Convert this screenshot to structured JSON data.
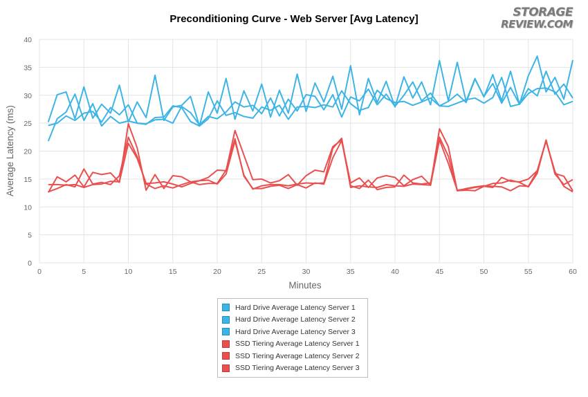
{
  "logo": {
    "line1": "STORAGE",
    "line2": "REVIEW.COM"
  },
  "chart_data": {
    "type": "line",
    "title": "Preconditioning Curve - Web Server [Avg Latency]",
    "xlabel": "Minutes",
    "ylabel": "Average Latency (ms)",
    "xlim": [
      0,
      60
    ],
    "ylim": [
      0,
      40
    ],
    "xticks": [
      0,
      5,
      10,
      15,
      20,
      25,
      30,
      35,
      40,
      45,
      50,
      55,
      60
    ],
    "yticks": [
      0,
      5,
      10,
      15,
      20,
      25,
      30,
      35,
      40
    ],
    "grid": true,
    "legend_position": "bottom",
    "x": [
      1,
      2,
      3,
      4,
      5,
      6,
      7,
      8,
      9,
      10,
      11,
      12,
      13,
      14,
      15,
      16,
      17,
      18,
      19,
      20,
      21,
      22,
      23,
      24,
      25,
      26,
      27,
      28,
      29,
      30,
      31,
      32,
      33,
      34,
      35,
      36,
      37,
      38,
      39,
      40,
      41,
      42,
      43,
      44,
      45,
      46,
      47,
      48,
      49,
      50,
      51,
      52,
      53,
      54,
      55,
      56,
      57,
      58,
      59,
      60
    ],
    "series": [
      {
        "name": "Hard Drive Average Latency Server 1",
        "color": "#3db4e6",
        "values": [
          25.2,
          30.1,
          30.6,
          25.8,
          31.5,
          25.9,
          28.4,
          26.8,
          31.8,
          25.2,
          28.8,
          26.0,
          33.6,
          25.5,
          27.9,
          28.2,
          29.8,
          24.5,
          30.6,
          26.8,
          33.0,
          25.7,
          30.8,
          27.2,
          32.0,
          26.1,
          30.9,
          26.8,
          33.8,
          27.1,
          32.2,
          28.8,
          33.4,
          27.5,
          35.3,
          26.5,
          33.0,
          28.7,
          32.5,
          27.9,
          33.3,
          29.5,
          32.4,
          28.3,
          36.2,
          29.0,
          35.9,
          28.9,
          33.0,
          29.7,
          33.7,
          29.0,
          34.3,
          28.4,
          33.5,
          37.0,
          30.6,
          33.2,
          29.3,
          36.3
        ]
      },
      {
        "name": "Hard Drive Average Latency Server 2",
        "color": "#3db4e6",
        "values": [
          24.6,
          25.0,
          26.3,
          25.5,
          26.8,
          27.1,
          25.2,
          27.8,
          26.5,
          28.3,
          25.0,
          24.9,
          25.6,
          25.7,
          25.0,
          28.0,
          26.9,
          24.7,
          26.2,
          25.8,
          27.0,
          28.8,
          27.9,
          28.2,
          26.7,
          29.5,
          26.3,
          29.3,
          27.2,
          30.1,
          29.8,
          27.4,
          30.1,
          26.1,
          29.7,
          29.0,
          31.1,
          28.3,
          30.2,
          28.0,
          30.0,
          32.4,
          29.0,
          30.4,
          28.1,
          28.9,
          30.2,
          28.7,
          32.9,
          29.8,
          32.1,
          28.6,
          31.4,
          28.4,
          31.2,
          29.9,
          34.3,
          30.2,
          32.0,
          29.5
        ]
      },
      {
        "name": "Hard Drive Average Latency Server 3",
        "color": "#3db4e6",
        "values": [
          21.8,
          25.8,
          27.0,
          30.2,
          25.5,
          28.5,
          24.5,
          26.2,
          25.0,
          25.4,
          25.0,
          24.8,
          26.0,
          26.1,
          28.1,
          27.8,
          25.3,
          24.5,
          25.8,
          29.0,
          26.4,
          26.9,
          26.2,
          25.9,
          27.9,
          27.3,
          28.2,
          25.7,
          27.9,
          28.0,
          27.8,
          28.3,
          27.9,
          30.8,
          28.5,
          27.3,
          27.8,
          30.9,
          29.4,
          28.7,
          28.9,
          28.2,
          28.8,
          29.5,
          28.1,
          28.0,
          28.6,
          29.2,
          29.5,
          28.6,
          29.6,
          33.2,
          28.0,
          28.4,
          30.3,
          31.2,
          31.3,
          30.6,
          28.3,
          28.9
        ]
      },
      {
        "name": "SSD Tiering Average Latency Server 1",
        "color": "#e8504f",
        "values": [
          12.6,
          15.4,
          14.5,
          15.7,
          13.6,
          16.2,
          15.8,
          16.1,
          14.4,
          24.9,
          20.6,
          13.0,
          15.8,
          13.3,
          15.6,
          15.4,
          14.5,
          14.7,
          15.3,
          16.6,
          16.5,
          23.7,
          19.3,
          14.9,
          15.0,
          14.3,
          14.7,
          15.8,
          13.9,
          15.6,
          16.6,
          16.3,
          20.8,
          22.0,
          14.3,
          15.2,
          13.5,
          15.2,
          15.6,
          15.3,
          13.8,
          14.9,
          15.5,
          13.9,
          24.0,
          20.8,
          12.9,
          13.0,
          12.9,
          13.7,
          13.5,
          15.3,
          14.6,
          14.5,
          15.0,
          16.5,
          21.9,
          16.0,
          15.5,
          12.9
        ]
      },
      {
        "name": "SSD Tiering Average Latency Server 2",
        "color": "#e8504f",
        "values": [
          12.7,
          13.3,
          14.0,
          13.6,
          16.8,
          14.1,
          14.4,
          14.0,
          15.6,
          22.5,
          19.0,
          14.1,
          13.3,
          13.8,
          13.4,
          14.0,
          14.5,
          14.0,
          14.2,
          14.2,
          16.6,
          22.2,
          15.5,
          13.3,
          13.3,
          13.7,
          13.9,
          13.3,
          14.0,
          13.4,
          14.3,
          14.1,
          18.8,
          21.9,
          13.8,
          13.3,
          14.8,
          13.1,
          13.5,
          13.6,
          15.7,
          14.3,
          14.1,
          14.3,
          22.5,
          19.1,
          12.9,
          13.3,
          13.6,
          13.8,
          13.7,
          13.6,
          12.9,
          13.8,
          13.7,
          16.4,
          21.8,
          16.3,
          13.7,
          12.7
        ]
      },
      {
        "name": "SSD Tiering Average Latency Server 3",
        "color": "#e8504f",
        "values": [
          14.0,
          14.0,
          13.9,
          14.0,
          13.5,
          14.0,
          14.1,
          14.6,
          14.5,
          21.4,
          18.7,
          14.2,
          14.3,
          14.5,
          14.1,
          13.6,
          14.2,
          14.7,
          14.8,
          14.1,
          15.9,
          21.8,
          15.7,
          13.2,
          13.8,
          14.0,
          14.0,
          13.8,
          14.1,
          14.3,
          14.2,
          14.3,
          20.5,
          22.3,
          13.5,
          13.8,
          13.6,
          13.5,
          14.0,
          13.8,
          13.7,
          14.1,
          14.0,
          13.9,
          22.0,
          17.8,
          13.0,
          13.2,
          13.5,
          13.7,
          14.2,
          14.3,
          14.8,
          14.4,
          13.6,
          16.0,
          22.0,
          15.9,
          14.0,
          14.9
        ]
      }
    ]
  }
}
